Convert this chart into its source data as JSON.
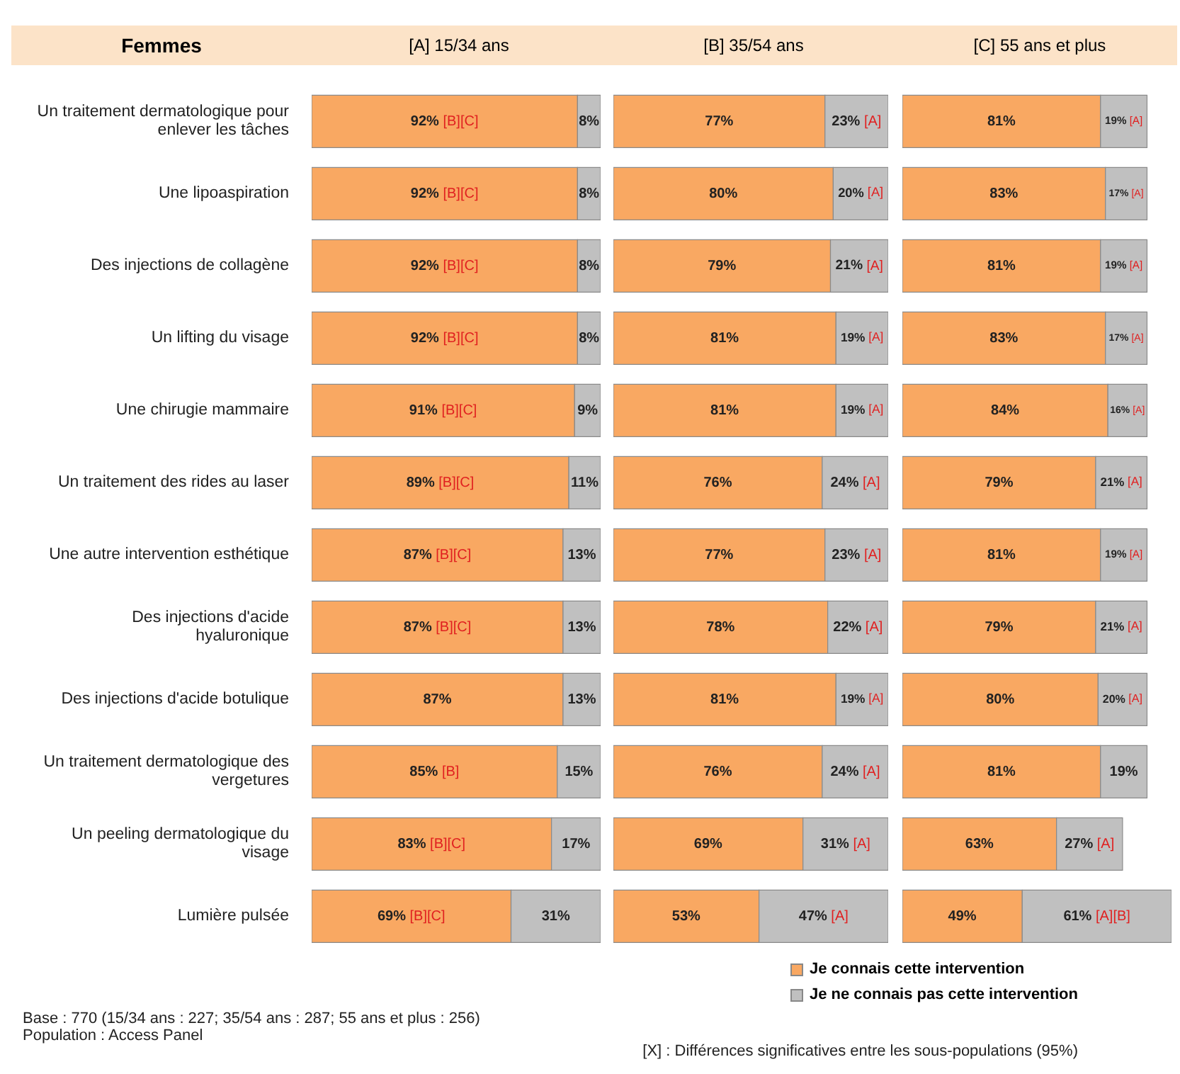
{
  "chart_data": [
    {
      "type": "bar",
      "orientation": "horizontal",
      "stacked": true,
      "ylabel": "Femmes",
      "title": "[A] 15/34 ans",
      "categories": [
        "Un traitement dermatologique pour enlever les tâches",
        "Une lipoaspiration",
        "Des injections de collagène",
        "Un lifting du visage",
        "Une chirugie mammaire",
        "Un traitement des rides au laser",
        "Une autre intervention esthétique",
        "Des injections d'acide hyaluronique",
        "Des injections d'acide botulique",
        "Un traitement dermatologique des vergetures",
        "Un peeling dermatologique du visage",
        "Lumière pulsée"
      ],
      "xlim": [
        0,
        100
      ],
      "tick_labels": "y",
      "legend": false,
      "series": [
        {
          "color": "#f9a862",
          "values": [
            92,
            92,
            92,
            92,
            91,
            89,
            87,
            87,
            87,
            85,
            83,
            69
          ],
          "value_labels": [
            "92% [B][C]",
            "92% [B][C]",
            "92% [B][C]",
            "92% [B][C]",
            "91% [B][C]",
            "89% [B][C]",
            "87% [B][C]",
            "87% [B][C]",
            "87%",
            "85% [B]",
            "83% [B][C]",
            "69% [B][C]"
          ]
        },
        {
          "color": "#c0c0c0",
          "values": [
            8,
            8,
            8,
            8,
            9,
            11,
            13,
            13,
            13,
            15,
            17,
            31
          ],
          "value_labels": [
            "8%",
            "8%",
            "8%",
            "8%",
            "9%",
            "11%",
            "13%",
            "13%",
            "13%",
            "15%",
            "17%",
            "31%"
          ]
        }
      ],
      "annotations": [
        "Base : 770 (15/34 ans : 227; 35/54 ans : 287; 55 ans et plus : 256)",
        "Population : Access Panel"
      ]
    },
    {
      "type": "bar",
      "orientation": "horizontal",
      "stacked": true,
      "title": "[B] 35/54 ans",
      "xlim": [
        0,
        100
      ],
      "tick_labels": false,
      "legend": false,
      "series": [
        {
          "color": "#f9a862",
          "values": [
            77,
            80,
            79,
            81,
            81,
            76,
            77,
            78,
            81,
            76,
            69,
            53
          ],
          "value_labels": [
            "77%",
            "80%",
            "79%",
            "81%",
            "81%",
            "76%",
            "77%",
            "78%",
            "81%",
            "76%",
            "69%",
            "53%"
          ]
        },
        {
          "color": "#c0c0c0",
          "values": [
            23,
            20,
            21,
            19,
            19,
            24,
            23,
            22,
            19,
            24,
            31,
            47
          ],
          "value_labels": [
            "23% [A]",
            "20% [A]",
            "21% [A]",
            "19% [A]",
            "19% [A]",
            "24% [A]",
            "23% [A]",
            "22% [A]",
            "19% [A]",
            "24% [A]",
            "31% [A]",
            "47% [A]"
          ]
        }
      ]
    },
    {
      "type": "bar",
      "orientation": "horizontal",
      "stacked": true,
      "title": "[C] 55 ans et plus",
      "xlim": [
        0,
        110
      ],
      "tick_labels": false,
      "legend": "bottom",
      "series": [
        {
          "name": "Je connais cette intervention",
          "color": "#f9a862",
          "values": [
            81,
            83,
            81,
            83,
            84,
            79,
            81,
            79,
            80,
            81,
            63,
            49
          ],
          "value_labels": [
            "81%",
            "83%",
            "81%",
            "83%",
            "84%",
            "79%",
            "81%",
            "79%",
            "80%",
            "81%",
            "63%",
            "49%"
          ]
        },
        {
          "name": "Je ne connais pas cette intervention",
          "color": "#c0c0c0",
          "values": [
            19,
            17,
            19,
            17,
            16,
            21,
            19,
            21,
            20,
            19,
            27,
            61
          ],
          "value_labels": [
            "19% [A]",
            "17% [A]",
            "19% [A]",
            "17% [A]",
            "16% [A]",
            "21% [A]",
            "19% [A]",
            "21% [A]",
            "20% [A]",
            "19%",
            "27% [A]",
            "61% [A][B]"
          ]
        }
      ],
      "annotations": [
        "[X] : Différences significatives entre les sous-populations (95%)"
      ]
    }
  ]
}
